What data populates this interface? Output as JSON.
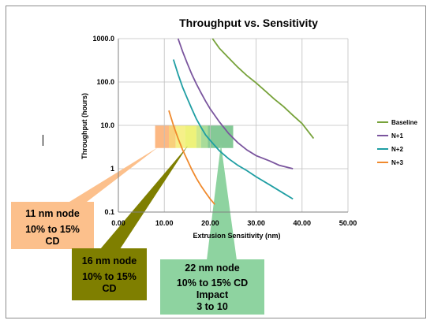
{
  "chart_data": {
    "type": "line",
    "title": "Throughput vs. Sensitivity",
    "xlabel": "Extrusion Sensitivity (nm)",
    "ylabel": "Throughput (hours)",
    "x_scale": "linear",
    "y_scale": "log",
    "xlim": [
      0,
      50
    ],
    "ylim": [
      0.1,
      1000
    ],
    "x_ticks": [
      "0.00",
      "10.00",
      "20.00",
      "30.00",
      "40.00",
      "50.00"
    ],
    "y_ticks": [
      {
        "value": 1000,
        "label": "1000.0"
      },
      {
        "value": 100,
        "label": "100.0"
      },
      {
        "value": 10,
        "label": "10.0"
      },
      {
        "value": 1,
        "label": "1"
      },
      {
        "value": 0.1,
        "label": "0.1"
      }
    ],
    "grid": true,
    "legend_position": "right",
    "series": [
      {
        "name": "Baseline",
        "color": "#77a23a",
        "points": [
          [
            20.5,
            1000
          ],
          [
            22,
            600
          ],
          [
            24,
            360
          ],
          [
            26,
            220
          ],
          [
            28,
            140
          ],
          [
            30,
            95
          ],
          [
            32,
            62
          ],
          [
            34,
            40
          ],
          [
            36,
            27
          ],
          [
            38,
            17
          ],
          [
            40,
            11
          ],
          [
            42.5,
            5
          ]
        ]
      },
      {
        "name": "N+1",
        "color": "#7a559e",
        "points": [
          [
            13,
            1000
          ],
          [
            14,
            500
          ],
          [
            15,
            270
          ],
          [
            16,
            150
          ],
          [
            17,
            90
          ],
          [
            18,
            56
          ],
          [
            19,
            36
          ],
          [
            20,
            24
          ],
          [
            22,
            12
          ],
          [
            24,
            6.5
          ],
          [
            26,
            4
          ],
          [
            28,
            2.7
          ],
          [
            30,
            2
          ],
          [
            33,
            1.5
          ],
          [
            35,
            1.2
          ],
          [
            38,
            1
          ]
        ]
      },
      {
        "name": "N+2",
        "color": "#1f9ea3",
        "points": [
          [
            12,
            330
          ],
          [
            13,
            150
          ],
          [
            14,
            75
          ],
          [
            15,
            42
          ],
          [
            16,
            24
          ],
          [
            17,
            14
          ],
          [
            18,
            9
          ],
          [
            19,
            6
          ],
          [
            20,
            4.5
          ],
          [
            22,
            2.6
          ],
          [
            24,
            1.7
          ],
          [
            26,
            1.2
          ],
          [
            28,
            0.9
          ],
          [
            30,
            0.65
          ],
          [
            33,
            0.42
          ],
          [
            36,
            0.27
          ],
          [
            38,
            0.2
          ]
        ]
      },
      {
        "name": "N+3",
        "color": "#f08a2d",
        "points": [
          [
            11,
            22
          ],
          [
            12,
            10
          ],
          [
            13,
            5
          ],
          [
            14,
            2.7
          ],
          [
            15,
            1.6
          ],
          [
            16,
            0.95
          ],
          [
            17,
            0.6
          ],
          [
            18,
            0.4
          ],
          [
            19,
            0.28
          ],
          [
            20,
            0.2
          ],
          [
            21,
            0.15
          ]
        ]
      }
    ],
    "bands": [
      {
        "x": [
          8,
          11
        ],
        "y": [
          3,
          10
        ],
        "color": "#fcb883"
      },
      {
        "x": [
          11,
          12.5
        ],
        "y": [
          3,
          10
        ],
        "color": "#f8d07a"
      },
      {
        "x": [
          12.5,
          14.5
        ],
        "y": [
          3,
          10
        ],
        "color": "#f6f089"
      },
      {
        "x": [
          14.5,
          17
        ],
        "y": [
          3,
          10
        ],
        "color": "#eef27a"
      },
      {
        "x": [
          17,
          18
        ],
        "y": [
          3,
          10
        ],
        "color": "#cfe88c"
      },
      {
        "x": [
          18,
          19.5
        ],
        "y": [
          3,
          10
        ],
        "color": "#a9dc9a"
      },
      {
        "x": [
          19.5,
          25
        ],
        "y": [
          3,
          10
        ],
        "color": "#84c996"
      }
    ],
    "callouts": {
      "nm11": {
        "line1": "11 nm node",
        "line2": "10% to 15%",
        "line3": "CD",
        "color": "#fcc08c"
      },
      "nm16": {
        "line1": "16 nm node",
        "line2": "10% to 15%",
        "line3": "CD",
        "color": "#7f7f00"
      },
      "nm22": {
        "line1": "22 nm node",
        "line2": "10% to 15% CD",
        "line3": "Impact",
        "line4": "3 to 10",
        "color": "#8ed3a0"
      }
    }
  }
}
